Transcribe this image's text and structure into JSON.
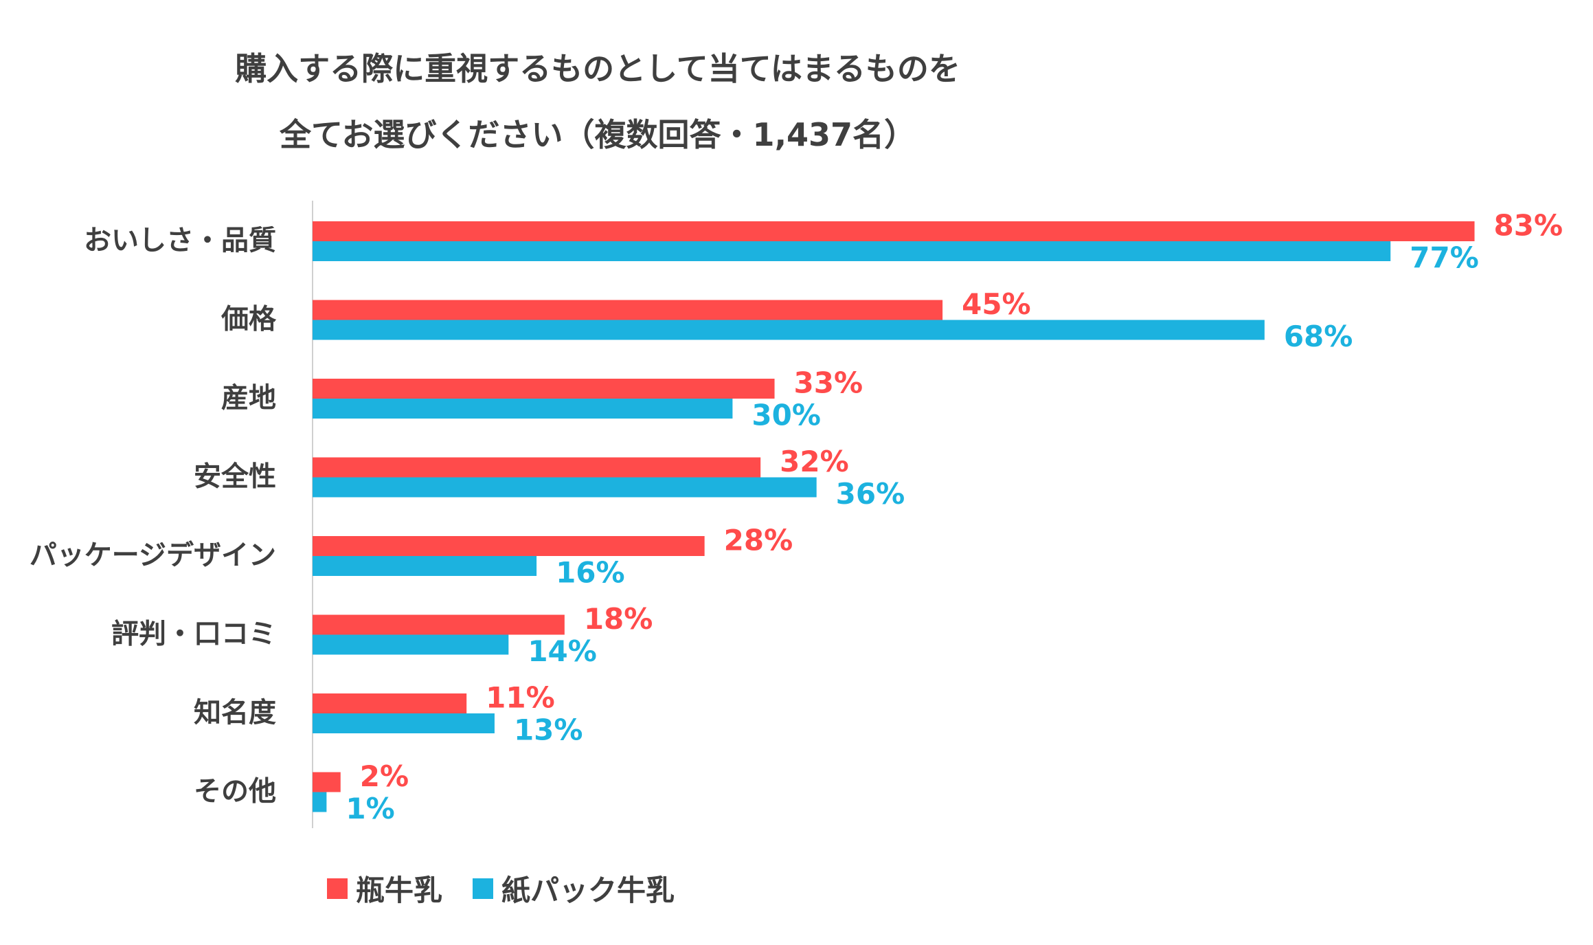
{
  "colors": {
    "bottle": "#FF4B4B",
    "paper": "#1CB2DF",
    "text": "#3F3F3F",
    "axis": "#D0D0D0"
  },
  "chart_data": {
    "type": "bar",
    "orientation": "horizontal",
    "title_lines": [
      "購入する際に重視するものとして当てはまるものを",
      "全てお選びください（複数回答・1,437名）"
    ],
    "categories": [
      "おいしさ・品質",
      "価格",
      "産地",
      "安全性",
      "パッケージデザイン",
      "評判・口コミ",
      "知名度",
      "その他"
    ],
    "series": [
      {
        "name": "瓶牛乳",
        "values": [
          83,
          45,
          33,
          32,
          28,
          18,
          11,
          2
        ],
        "labels": [
          "83%",
          "45%",
          "33%",
          "32%",
          "28%",
          "18%",
          "11%",
          "2%"
        ]
      },
      {
        "name": "紙パック牛乳",
        "values": [
          77,
          68,
          30,
          36,
          16,
          14,
          13,
          1
        ],
        "labels": [
          "77%",
          "68%",
          "30%",
          "36%",
          "16%",
          "14%",
          "13%",
          "1%"
        ]
      }
    ],
    "xlim": [
      0,
      90
    ],
    "grid": false,
    "legend_position": "bottom"
  }
}
